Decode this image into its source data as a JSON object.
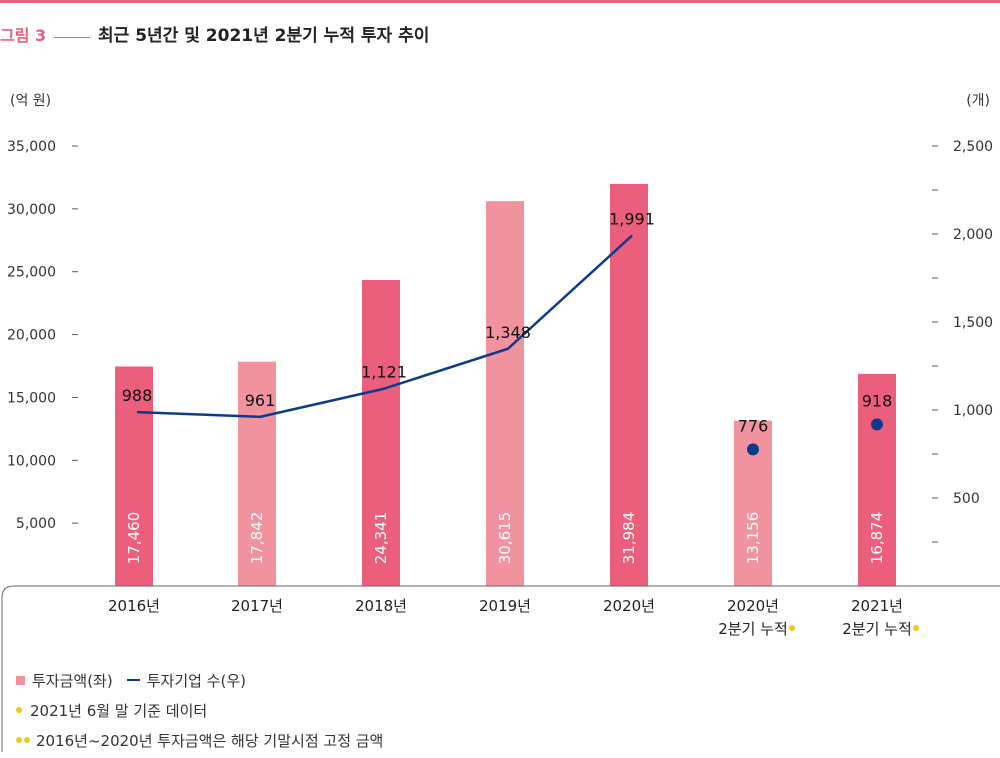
{
  "figure": {
    "label": "그림 3",
    "title": "최근 5년간 및 2021년 2분기 누적 투자 추이"
  },
  "chart_data": {
    "type": "bar",
    "left_unit": "(억 원)",
    "right_unit": "(개)",
    "categories": [
      [
        "2016년"
      ],
      [
        "2017년"
      ],
      [
        "2018년"
      ],
      [
        "2019년"
      ],
      [
        "2020년"
      ],
      [
        "2020년",
        "2분기 누적"
      ],
      [
        "2021년",
        "2분기 누적"
      ]
    ],
    "footnote_marker_categories": [
      5,
      6
    ],
    "left_ticks": [
      "5,000",
      "10,000",
      "15,000",
      "20,000",
      "25,000",
      "30,000",
      "35,000"
    ],
    "left_tick_values": [
      5000,
      10000,
      15000,
      20000,
      25000,
      30000,
      35000
    ],
    "right_ticks": [
      "500",
      "1,000",
      "1,500",
      "2,000",
      "2,500"
    ],
    "right_tick_values": [
      500,
      1000,
      1500,
      2000,
      2500
    ],
    "bars": {
      "name": "투자금액(좌)",
      "values": [
        17460,
        17842,
        24341,
        30615,
        31984,
        13156,
        16874
      ],
      "labels": [
        "17,460",
        "17,842",
        "24,341",
        "30,615",
        "31,984",
        "13,156",
        "16,874"
      ],
      "colors": [
        "#ec5f7c",
        "#f1939f",
        "#ec5f7c",
        "#f1939f",
        "#ec5f7c",
        "#f1939f",
        "#ec5f7c"
      ]
    },
    "line": {
      "name": "투자기업 수(우)",
      "values": [
        988,
        961,
        1121,
        1348,
        1991
      ],
      "labels": [
        "988",
        "961",
        "1,121",
        "1,348",
        "1,991"
      ],
      "color": "#0d3b8c"
    },
    "points": {
      "values": [
        776,
        918
      ],
      "labels": [
        "776",
        "918"
      ],
      "category_index": [
        5,
        6
      ],
      "color": "#0d3b8c"
    }
  },
  "legend": {
    "bar_label": "투자금액(좌)",
    "line_label": "투자기업 수(우)",
    "note1": "2021년 6월 말 기준 데이터",
    "note2": "2016년~2020년 투자금액은 해당 기말시점 고정 금액"
  },
  "colors": {
    "accent": "#e8607c",
    "bar_dark": "#ec5f7c",
    "bar_light": "#f1939f",
    "line": "#0d3b8c",
    "footnote_dot": "#f5c518"
  }
}
